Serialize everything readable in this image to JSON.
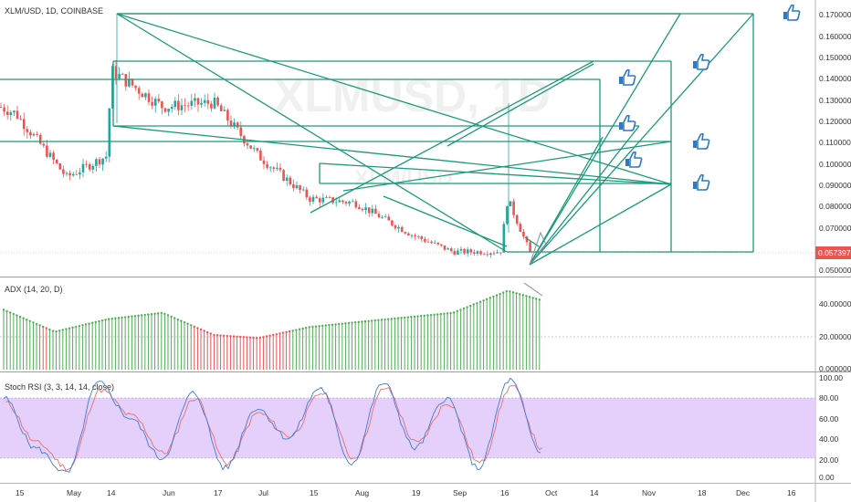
{
  "header": {
    "symbol_line": "XLM/USD, 1D, COINBASE"
  },
  "watermark": {
    "ticker": "XLMUSD, 1D",
    "pair": "XLM/USD"
  },
  "colors": {
    "up": "#26a69a",
    "down": "#ef5350",
    "drawing": "#1a9a7a",
    "adx_green": "#4caf50",
    "adx_red": "#ef5350",
    "stoch_k": "#3b7dd8",
    "stoch_d": "#ef6c6c",
    "stoch_band": "#e1c8fb",
    "price_tag": "#ef5350"
  },
  "time_axis": {
    "labels": [
      "15",
      "May",
      "14",
      "Jun",
      "17",
      "Jul",
      "15",
      "Aug",
      "19",
      "Sep",
      "16",
      "Oct",
      "14",
      "Nov",
      "18",
      "Dec",
      "16"
    ]
  },
  "price_axis": {
    "labels": [
      "0.170000",
      "0.160000",
      "0.150000",
      "0.140000",
      "0.130000",
      "0.120000",
      "0.110000",
      "0.100000",
      "0.090000",
      "0.080000",
      "0.070000",
      "0.050000"
    ],
    "last_price_label": "0.057397"
  },
  "adx_panel": {
    "title": "ADX (14, 20, D)",
    "axis_labels": [
      "40.000000",
      "20.000000",
      "0.000000"
    ]
  },
  "stoch_panel": {
    "title": "Stoch RSI (3, 3, 14, 14, close)",
    "axis_labels": [
      "100.00",
      "80.00",
      "60.00",
      "40.00",
      "20.00",
      "0.00"
    ]
  },
  "icons": [
    "thumbs-up-icon",
    "thumbs-up-icon",
    "thumbs-up-icon",
    "thumbs-up-icon",
    "thumbs-up-icon",
    "thumbs-up-icon",
    "thumbs-up-icon"
  ],
  "chart_data": [
    {
      "type": "candlestick",
      "title": "XLM/USD, 1D, COINBASE",
      "ylim": [
        0.048,
        0.174
      ],
      "last_price": 0.057397,
      "approx_path": {
        "dates": [
          "Apr 15",
          "May 1",
          "May 14",
          "May 15",
          "Jun 1",
          "Jun 17",
          "Jul 1",
          "Jul 15",
          "Aug 1",
          "Aug 19",
          "Sep 1",
          "Sep 16",
          "Sep 17",
          "Sep 25"
        ],
        "close": [
          0.125,
          0.095,
          0.105,
          0.145,
          0.128,
          0.13,
          0.105,
          0.085,
          0.083,
          0.068,
          0.06,
          0.06,
          0.085,
          0.057
        ]
      }
    },
    {
      "type": "bar",
      "title": "ADX (14, 20, D)",
      "ylim": [
        0,
        55
      ],
      "reference_line": 20,
      "approx_path": {
        "dates": [
          "Apr 15",
          "May 1",
          "May 14",
          "Jun 1",
          "Jun 17",
          "Jul 1",
          "Jul 15",
          "Aug 1",
          "Sep 1",
          "Sep 16",
          "Sep 25"
        ],
        "values": [
          38,
          24,
          32,
          36,
          22,
          20,
          27,
          30,
          36,
          50,
          44
        ]
      }
    },
    {
      "type": "line",
      "title": "Stoch RSI (3, 3, 14, 14, close)",
      "ylim": [
        0,
        100
      ],
      "bands": [
        20,
        80
      ],
      "series": [
        {
          "values": [
            80,
            30,
            5,
            95,
            60,
            20,
            85,
            10,
            70,
            40,
            90,
            15,
            95,
            30,
            80,
            10,
            98,
            25
          ]
        },
        {
          "values": [
            75,
            35,
            10,
            88,
            62,
            25,
            80,
            15,
            65,
            42,
            85,
            20,
            90,
            35,
            75,
            15,
            92,
            28
          ]
        }
      ]
    }
  ]
}
